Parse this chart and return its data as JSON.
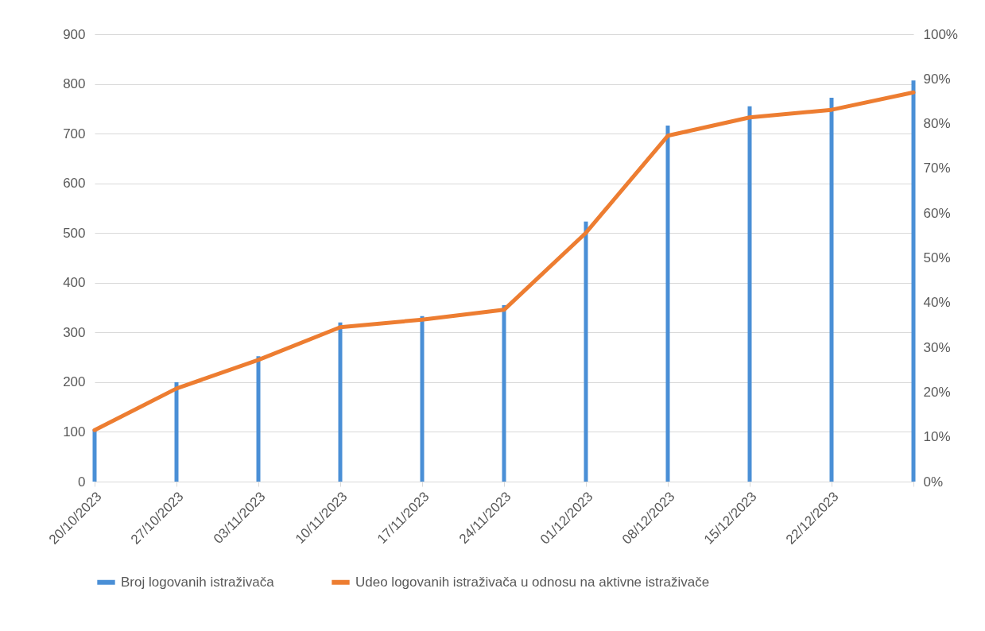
{
  "chart_data": {
    "type": "bar",
    "categories": [
      "20/10/2023",
      "27/10/2023",
      "03/11/2023",
      "10/11/2023",
      "17/11/2023",
      "24/11/2023",
      "01/12/2023",
      "08/12/2023",
      "15/12/2023",
      "22/12/2023",
      null
    ],
    "series": [
      {
        "name": "Broj logovanih istraživača",
        "color": "#4a8fd6",
        "values": [
          105,
          200,
          252,
          320,
          333,
          355,
          523,
          716,
          755,
          772,
          807
        ]
      },
      {
        "name": "Udeo logovanih istraživača u odnosu na aktivne istraživače",
        "color": "#ed7d31",
        "type": "line",
        "axis": "y2",
        "values": [
          11.5,
          20.8,
          27.2,
          34.5,
          36.2,
          38.4,
          55.6,
          77.3,
          81.4,
          83.1,
          87
        ]
      }
    ],
    "ylim": [
      0,
      900
    ],
    "yticks": [
      0,
      100,
      200,
      300,
      400,
      500,
      600,
      700,
      800,
      900
    ],
    "y2lim": [
      0,
      100
    ],
    "y2ticks": [
      {
        "value": 0,
        "label": "0%"
      },
      {
        "value": 10,
        "label": "10%"
      },
      {
        "value": 20,
        "label": "20%"
      },
      {
        "value": 30,
        "label": "30%"
      },
      {
        "value": 40,
        "label": "40%"
      },
      {
        "value": 50,
        "label": "50%"
      },
      {
        "value": 60,
        "label": "60%"
      },
      {
        "value": 70,
        "label": "70%"
      },
      {
        "value": 80,
        "label": "80%"
      },
      {
        "value": 90,
        "label": "90%"
      },
      {
        "value": 100,
        "label": "100%"
      }
    ],
    "grid": "y",
    "legend": "bottom"
  }
}
